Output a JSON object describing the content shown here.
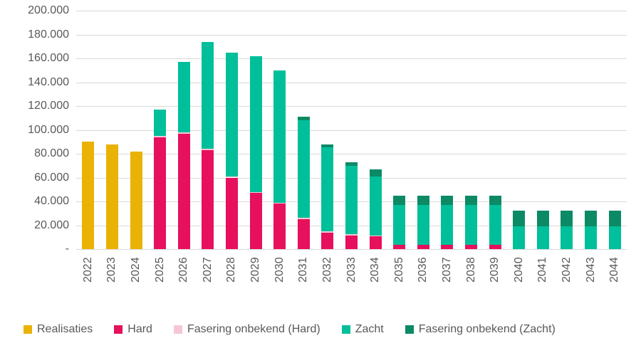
{
  "chart_data": {
    "type": "bar",
    "stacked": true,
    "title": "",
    "xlabel": "",
    "ylabel": "",
    "grid": true,
    "legend_position": "bottom",
    "ylim": [
      0,
      200000
    ],
    "y_ticks": [
      {
        "value": 0,
        "label": "-"
      },
      {
        "value": 20000,
        "label": "20.000"
      },
      {
        "value": 40000,
        "label": "40.000"
      },
      {
        "value": 60000,
        "label": "60.000"
      },
      {
        "value": 80000,
        "label": "80.000"
      },
      {
        "value": 100000,
        "label": "100.000"
      },
      {
        "value": 120000,
        "label": "120.000"
      },
      {
        "value": 140000,
        "label": "140.000"
      },
      {
        "value": 160000,
        "label": "160.000"
      },
      {
        "value": 180000,
        "label": "180.000"
      },
      {
        "value": 200000,
        "label": "200.000"
      }
    ],
    "categories": [
      "2022",
      "2023",
      "2024",
      "2025",
      "2026",
      "2027",
      "2028",
      "2029",
      "2030",
      "2031",
      "2032",
      "2033",
      "2034",
      "2035",
      "2036",
      "2037",
      "2038",
      "2039",
      "2040",
      "2041",
      "2042",
      "2043",
      "2044"
    ],
    "series": [
      {
        "name": "Realisaties",
        "color": "#E9B204",
        "values": [
          90000,
          88000,
          82000,
          0,
          0,
          0,
          0,
          0,
          0,
          0,
          0,
          0,
          0,
          0,
          0,
          0,
          0,
          0,
          0,
          0,
          0,
          0,
          0
        ]
      },
      {
        "name": "Hard",
        "color": "#E6105C",
        "values": [
          0,
          0,
          0,
          94000,
          97000,
          83000,
          60000,
          47000,
          38000,
          25000,
          13500,
          11500,
          10500,
          3500,
          3500,
          3500,
          3500,
          3500,
          0,
          0,
          0,
          0,
          0
        ]
      },
      {
        "name": "Fasering onbekend (Hard)",
        "color": "#F7C6D4",
        "values": [
          0,
          0,
          0,
          1000,
          1000,
          1000,
          1000,
          1000,
          1000,
          1000,
          1500,
          1000,
          1000,
          0,
          0,
          0,
          0,
          0,
          0,
          0,
          0,
          0,
          0
        ]
      },
      {
        "name": "Zacht",
        "color": "#00BF9A",
        "values": [
          0,
          0,
          0,
          22000,
          59000,
          90000,
          104000,
          114000,
          111000,
          82000,
          70500,
          57500,
          49500,
          33500,
          33500,
          33500,
          33500,
          33500,
          19000,
          19000,
          19000,
          19000,
          19000
        ]
      },
      {
        "name": "Fasering onbekend (Zacht)",
        "color": "#0C8A66",
        "values": [
          0,
          0,
          0,
          0,
          0,
          0,
          0,
          0,
          0,
          3000,
          2500,
          3000,
          6000,
          8000,
          8000,
          8000,
          8000,
          8000,
          13000,
          13000,
          13000,
          13000,
          13000
        ]
      }
    ]
  },
  "colors": {
    "background": "#FFFFFF",
    "grid": "#D9D9D9",
    "axis_text": "#595959",
    "realisaties": "#E9B204",
    "hard": "#E6105C",
    "fasering_onbekend_hard": "#F7C6D4",
    "zacht": "#00BF9A",
    "fasering_onbekend_zacht": "#0C8A66"
  }
}
